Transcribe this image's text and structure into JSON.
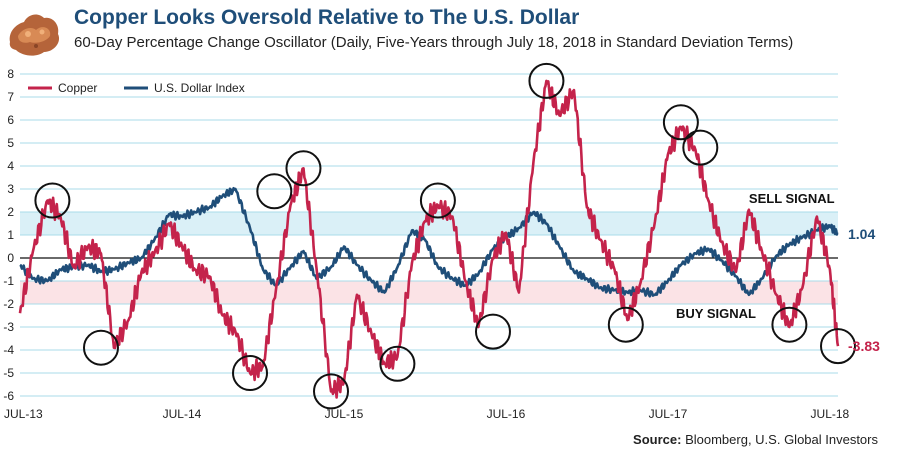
{
  "header": {
    "title": "Copper Looks Oversold Relative to The U.S. Dollar",
    "subtitle": "60-Day Percentage Change Oscillator (Daily, Five-Years through July 18, 2018 in Standard Deviation Terms)",
    "logo_icon": "copper-nugget-icon"
  },
  "source": {
    "label": "Source:",
    "text": "Bloomberg, U.S. Global Investors"
  },
  "colors": {
    "copper": "#c4234b",
    "dollar": "#1f4e79",
    "sell_band": "#daf0f7",
    "buy_band": "#fbe3e6",
    "gridline": "#a8dbe8"
  },
  "chart_data": {
    "type": "line",
    "title": "",
    "xlabel": "",
    "ylabel": "",
    "ylim": [
      -6,
      8
    ],
    "yticks": [
      8,
      7,
      6,
      5,
      4,
      3,
      2,
      1,
      0,
      -1,
      -2,
      -3,
      -4,
      -5,
      -6
    ],
    "xticks": [
      "JUL-13",
      "JUL-14",
      "JUL-15",
      "JUL-16",
      "JUL-17",
      "JUL-18"
    ],
    "grid": true,
    "legend_position": "top-left",
    "bands": [
      {
        "label": "SELL SIGNAL",
        "from": 1,
        "to": 2,
        "color": "#daf0f7"
      },
      {
        "label": "BUY SIGNAL",
        "from": -2,
        "to": -1,
        "color": "#fbe3e6"
      }
    ],
    "end_labels": [
      {
        "series": "U.S. Dollar Index",
        "value": "1.04"
      },
      {
        "series": "Copper",
        "value": "-3.83"
      }
    ],
    "series": [
      {
        "name": "Copper",
        "color": "#c4234b",
        "x": [
          2013.5,
          2013.58,
          2013.67,
          2013.75,
          2013.83,
          2013.92,
          2014.0,
          2014.08,
          2014.17,
          2014.25,
          2014.33,
          2014.42,
          2014.5,
          2014.58,
          2014.67,
          2014.75,
          2014.83,
          2014.92,
          2015.0,
          2015.08,
          2015.17,
          2015.25,
          2015.33,
          2015.42,
          2015.5,
          2015.58,
          2015.67,
          2015.75,
          2015.83,
          2015.92,
          2016.0,
          2016.08,
          2016.17,
          2016.25,
          2016.33,
          2016.42,
          2016.5,
          2016.58,
          2016.67,
          2016.75,
          2016.83,
          2016.92,
          2017.0,
          2017.08,
          2017.17,
          2017.25,
          2017.33,
          2017.42,
          2017.5,
          2017.58,
          2017.67,
          2017.75,
          2017.83,
          2017.92,
          2018.0,
          2018.08,
          2018.17,
          2018.25,
          2018.33,
          2018.42,
          2018.5,
          2018.55
        ],
        "values": [
          -2.4,
          0.3,
          2.5,
          1.8,
          -0.4,
          0.5,
          0.2,
          -3.9,
          -2.7,
          -0.6,
          0.2,
          1.5,
          0.5,
          -0.5,
          -0.8,
          -2.5,
          -3.2,
          -5.0,
          -4.7,
          -1.4,
          2.3,
          3.9,
          -0.4,
          -5.8,
          -5.4,
          -1.6,
          -3.3,
          -4.6,
          -4.3,
          -0.2,
          1.6,
          2.3,
          1.8,
          -1.0,
          -3.0,
          0.0,
          1.1,
          -1.5,
          4.2,
          7.7,
          6.2,
          7.3,
          2.2,
          0.8,
          -0.5,
          -2.7,
          -1.1,
          1.6,
          4.5,
          5.7,
          4.7,
          2.5,
          0.7,
          -0.6,
          2.1,
          0.3,
          -1.6,
          -3.0,
          -1.3,
          1.8,
          -0.5,
          -3.83
        ]
      },
      {
        "name": "U.S. Dollar Index",
        "color": "#1f4e79",
        "x": [
          2013.5,
          2013.58,
          2013.67,
          2013.75,
          2013.83,
          2013.92,
          2014.0,
          2014.08,
          2014.17,
          2014.25,
          2014.33,
          2014.42,
          2014.5,
          2014.58,
          2014.67,
          2014.75,
          2014.83,
          2014.92,
          2015.0,
          2015.08,
          2015.17,
          2015.25,
          2015.33,
          2015.42,
          2015.5,
          2015.58,
          2015.67,
          2015.75,
          2015.83,
          2015.92,
          2016.0,
          2016.08,
          2016.17,
          2016.25,
          2016.33,
          2016.42,
          2016.5,
          2016.58,
          2016.67,
          2016.75,
          2016.83,
          2016.92,
          2017.0,
          2017.08,
          2017.17,
          2017.25,
          2017.33,
          2017.42,
          2017.5,
          2017.58,
          2017.67,
          2017.75,
          2017.83,
          2017.92,
          2018.0,
          2018.08,
          2018.17,
          2018.25,
          2018.33,
          2018.42,
          2018.5,
          2018.55
        ],
        "values": [
          -0.3,
          -0.9,
          -1.0,
          -0.5,
          -0.4,
          -0.3,
          -0.6,
          -0.5,
          -0.2,
          0.0,
          0.8,
          1.9,
          1.8,
          2.0,
          2.2,
          2.7,
          3.0,
          1.3,
          -0.5,
          -1.2,
          -0.4,
          0.3,
          -0.9,
          -0.4,
          0.5,
          -0.3,
          -1.0,
          -1.5,
          -0.4,
          1.2,
          0.8,
          -0.4,
          -0.9,
          -1.2,
          -0.7,
          0.4,
          0.9,
          1.3,
          2.0,
          1.5,
          0.5,
          -0.6,
          -0.9,
          -1.3,
          -1.4,
          -1.5,
          -1.4,
          -1.6,
          -1.0,
          -0.3,
          0.2,
          0.4,
          -0.1,
          -0.8,
          -1.6,
          -0.9,
          0.1,
          0.6,
          0.9,
          1.2,
          1.4,
          1.04
        ]
      }
    ],
    "annotations": [
      {
        "label": "SELL SIGNAL",
        "x": 2018.0,
        "y": 2.4
      },
      {
        "label": "BUY SIGNAL",
        "x": 2017.55,
        "y": -2.6
      }
    ],
    "circled_extremes": [
      {
        "x": 2013.7,
        "y": 2.5
      },
      {
        "x": 2014.0,
        "y": -3.9
      },
      {
        "x": 2014.92,
        "y": -5.0
      },
      {
        "x": 2015.07,
        "y": 2.9
      },
      {
        "x": 2015.25,
        "y": 3.9
      },
      {
        "x": 2015.42,
        "y": -5.8
      },
      {
        "x": 2015.83,
        "y": -4.6
      },
      {
        "x": 2016.08,
        "y": 2.5
      },
      {
        "x": 2016.42,
        "y": -3.2
      },
      {
        "x": 2016.75,
        "y": 7.7
      },
      {
        "x": 2017.24,
        "y": -2.9
      },
      {
        "x": 2017.58,
        "y": 5.9
      },
      {
        "x": 2017.7,
        "y": 4.8
      },
      {
        "x": 2018.25,
        "y": -2.9
      },
      {
        "x": 2018.55,
        "y": -3.83
      }
    ]
  }
}
